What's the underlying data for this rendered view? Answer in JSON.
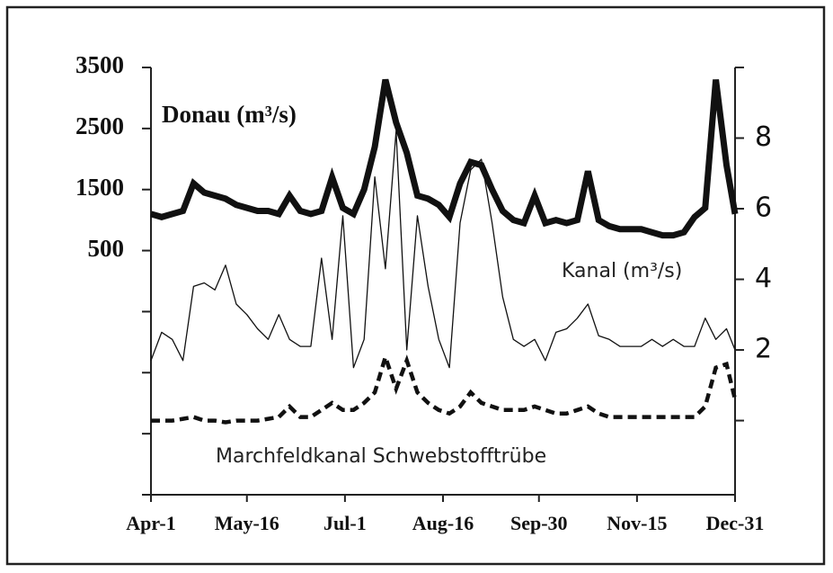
{
  "chart_data": {
    "type": "line",
    "x": [
      0,
      5,
      10,
      15,
      20,
      25,
      30,
      35,
      40,
      45,
      50,
      55,
      60,
      65,
      70,
      75,
      80,
      85,
      90,
      95,
      100,
      105,
      110,
      115,
      120,
      125,
      130,
      135,
      140,
      145,
      150,
      155,
      160,
      165,
      170,
      175,
      180,
      185,
      190,
      195,
      200,
      205,
      210,
      215,
      220,
      225,
      230,
      235,
      240,
      245,
      250,
      255,
      260,
      265,
      270,
      274
    ],
    "xlim": [
      0,
      274
    ],
    "xticks": [
      {
        "value": 0,
        "label": "Apr-1"
      },
      {
        "value": 45,
        "label": "May-16"
      },
      {
        "value": 91,
        "label": "Jul-1"
      },
      {
        "value": 137,
        "label": "Aug-16"
      },
      {
        "value": 182,
        "label": "Sep-30"
      },
      {
        "value": 228,
        "label": "Nov-15"
      },
      {
        "value": 274,
        "label": "Dec-31"
      }
    ],
    "ylim": [
      -3500,
      3500
    ],
    "yticks": [
      500,
      1500,
      2500,
      3500
    ],
    "yminor": [
      -3500,
      -2500,
      -1500,
      -500
    ],
    "y2lim": [
      -2.1,
      10
    ],
    "y2ticks": [
      2,
      4,
      6,
      8
    ],
    "y2minor": [
      0,
      10
    ],
    "series": [
      {
        "name": "Donau (m³/s)",
        "color": "#111111",
        "style": "thick",
        "axis": "y",
        "values": [
          1100,
          1050,
          1100,
          1150,
          1600,
          1450,
          1400,
          1350,
          1250,
          1200,
          1150,
          1150,
          1100,
          1400,
          1150,
          1100,
          1150,
          1700,
          1200,
          1100,
          1500,
          2200,
          3300,
          2600,
          2100,
          1400,
          1350,
          1250,
          1050,
          1600,
          1950,
          1900,
          1500,
          1150,
          1000,
          950,
          1400,
          950,
          1000,
          950,
          1000,
          1800,
          1000,
          900,
          850,
          850,
          850,
          800,
          750,
          750,
          800,
          1050,
          1200,
          3300,
          1900,
          1100
        ]
      },
      {
        "name": "Kanal (m³/s)",
        "color": "#111111",
        "style": "thin",
        "axis": "y2",
        "values": [
          1.7,
          2.5,
          2.3,
          1.7,
          3.8,
          3.9,
          3.7,
          4.4,
          3.3,
          3.0,
          2.6,
          2.3,
          3.0,
          2.3,
          2.1,
          2.1,
          4.6,
          2.3,
          5.8,
          1.5,
          2.3,
          6.9,
          4.3,
          8.2,
          2.0,
          5.8,
          3.8,
          2.3,
          1.5,
          5.6,
          7.1,
          7.4,
          5.6,
          3.5,
          2.3,
          2.1,
          2.3,
          1.7,
          2.5,
          2.6,
          2.9,
          3.3,
          2.4,
          2.3,
          2.1,
          2.1,
          2.1,
          2.3,
          2.1,
          2.3,
          2.1,
          2.1,
          2.9,
          2.3,
          2.6,
          2.0
        ]
      },
      {
        "name": "Marchfeldkanal Schwebstofftrübe",
        "color": "#111111",
        "style": "dashed",
        "axis": "y2",
        "values": [
          0,
          0,
          0,
          0.05,
          0.1,
          0,
          0,
          -0.05,
          0,
          0,
          0,
          0.05,
          0.1,
          0.4,
          0.1,
          0.1,
          0.3,
          0.5,
          0.3,
          0.3,
          0.5,
          0.8,
          1.8,
          0.9,
          1.7,
          0.8,
          0.5,
          0.3,
          0.2,
          0.4,
          0.8,
          0.5,
          0.4,
          0.3,
          0.3,
          0.3,
          0.4,
          0.3,
          0.2,
          0.2,
          0.3,
          0.4,
          0.2,
          0.1,
          0.1,
          0.1,
          0.1,
          0.1,
          0.1,
          0.1,
          0.1,
          0.1,
          0.4,
          1.5,
          1.6,
          0.6
        ]
      }
    ]
  }
}
